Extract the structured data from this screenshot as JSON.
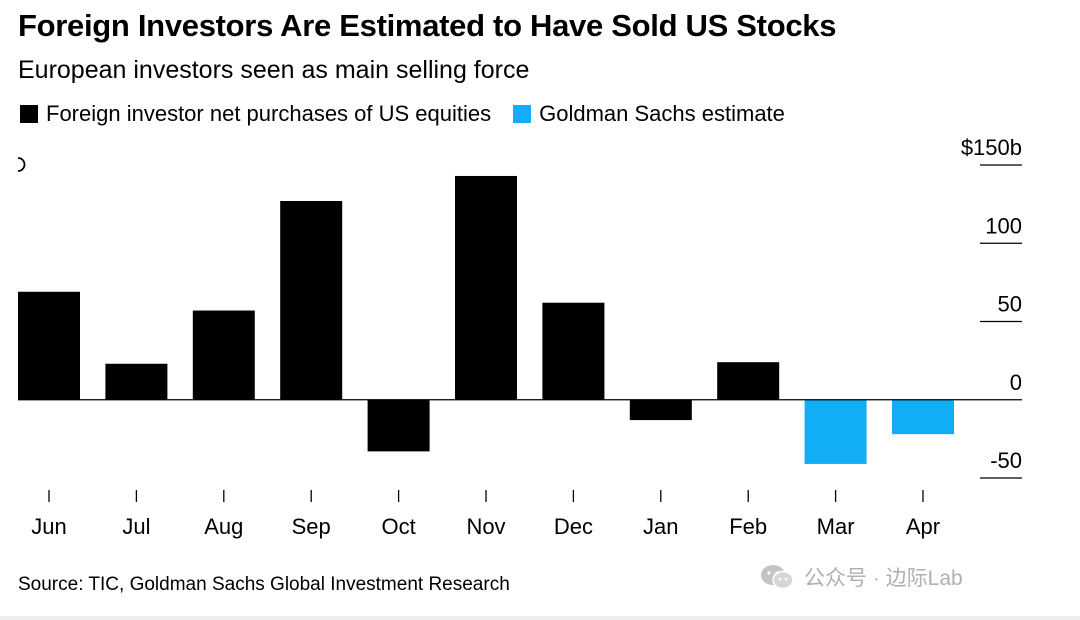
{
  "title": "Foreign Investors Are Estimated to Have Sold US Stocks",
  "subtitle": "European investors seen as main selling force",
  "legend": [
    {
      "label": "Foreign investor net purchases of US equities",
      "color": "#000000"
    },
    {
      "label": "Goldman Sachs estimate",
      "color": "#12aef5"
    }
  ],
  "source": "Source: TIC, Goldman Sachs Global Investment Research",
  "watermark": "公众号 · 边际Lab",
  "chart_data": {
    "type": "bar",
    "categories": [
      "Jun",
      "Jul",
      "Aug",
      "Sep",
      "Oct",
      "Nov",
      "Dec",
      "Jan",
      "Feb",
      "Mar",
      "Apr"
    ],
    "series": [
      {
        "name": "Foreign investor net purchases of US equities",
        "color": "#000000",
        "values": [
          69,
          23,
          57,
          127,
          -33,
          143,
          62,
          -13,
          24,
          null,
          null
        ]
      },
      {
        "name": "Goldman Sachs estimate",
        "color": "#12aef5",
        "values": [
          null,
          null,
          null,
          null,
          null,
          null,
          null,
          null,
          null,
          -41,
          -22
        ]
      }
    ],
    "ylim": [
      -50,
      150
    ],
    "yticks": [
      {
        "value": 150,
        "label": "$150b"
      },
      {
        "value": 100,
        "label": "100"
      },
      {
        "value": 50,
        "label": "50"
      },
      {
        "value": 0,
        "label": "0"
      },
      {
        "value": -50,
        "label": "-50"
      }
    ],
    "legend_position": "top-left",
    "grid": false
  }
}
